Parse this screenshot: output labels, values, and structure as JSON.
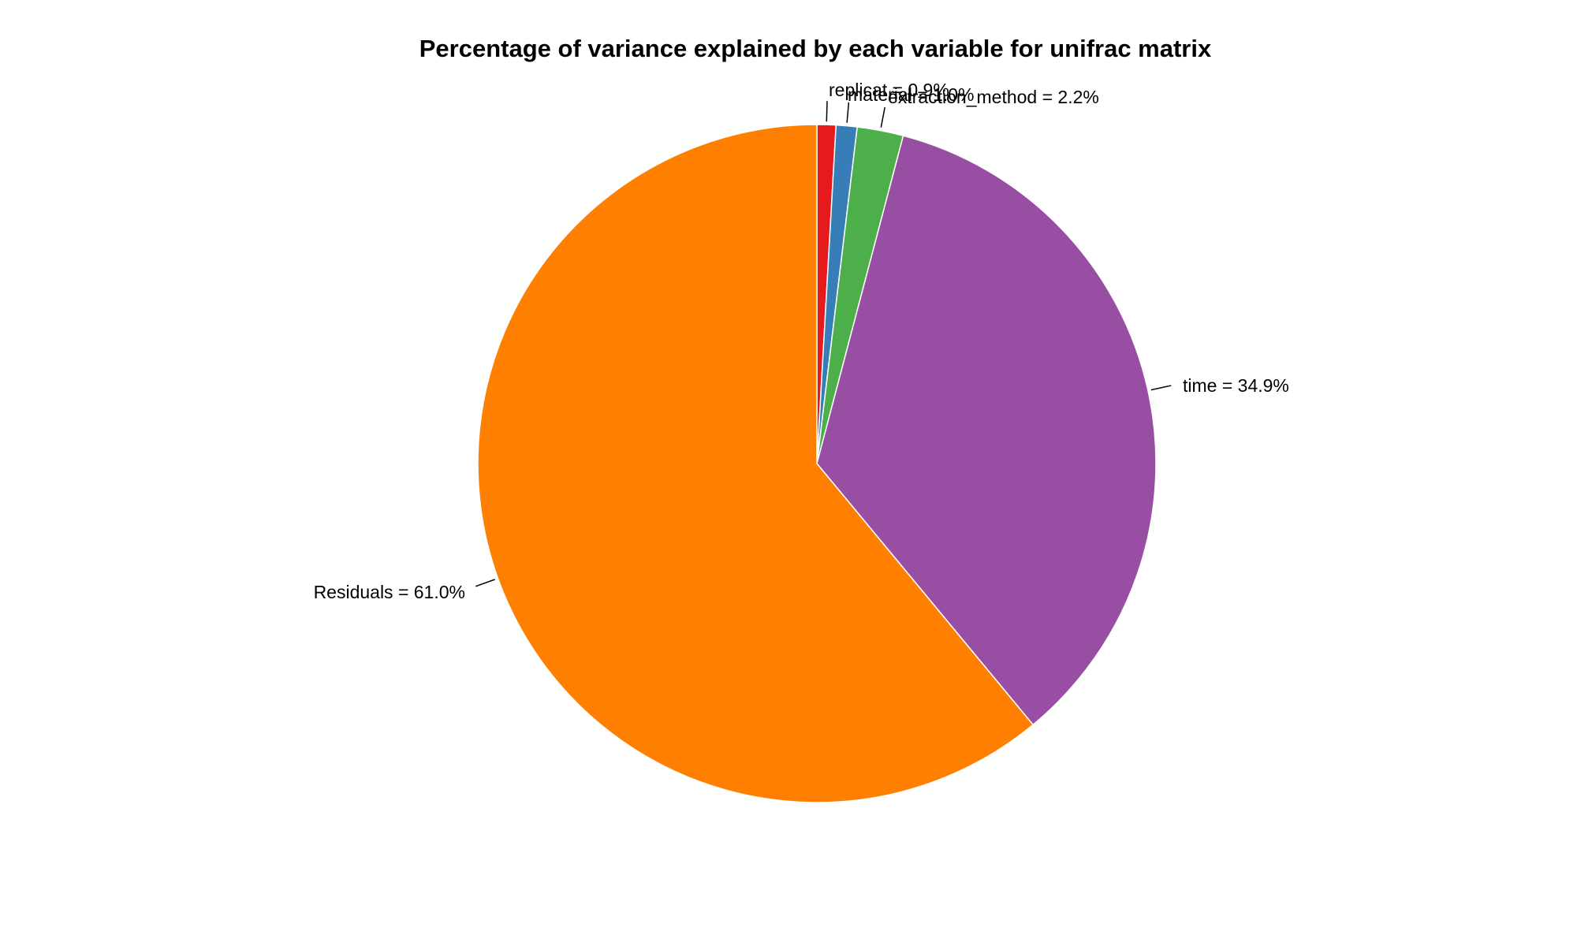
{
  "chart_data": {
    "type": "pie",
    "title": "Percentage of variance explained by each variable for unifrac matrix",
    "slices": [
      {
        "label": "replicat = 0.9%",
        "name": "replicat",
        "value": 0.9,
        "color": "#e41a1c"
      },
      {
        "label": "material = 1.0%",
        "name": "material",
        "value": 1.0,
        "color": "#377eb8"
      },
      {
        "label": "extraction_method = 2.2%",
        "name": "extraction_method",
        "value": 2.2,
        "color": "#4daf4a"
      },
      {
        "label": "time = 34.9%",
        "name": "time",
        "value": 34.9,
        "color": "#984ea3"
      },
      {
        "label": "Residuals = 61.0%",
        "name": "Residuals",
        "value": 61.0,
        "color": "#ff7f00"
      }
    ],
    "start": "12 o'clock",
    "direction": "clockwise",
    "legend": "none"
  }
}
